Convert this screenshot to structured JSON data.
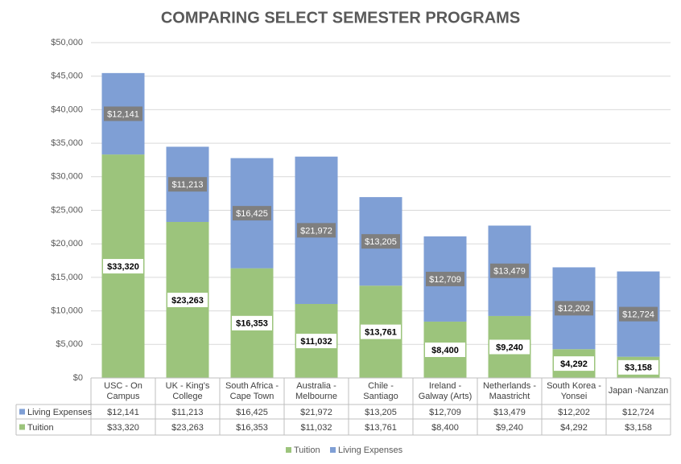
{
  "chart_data": {
    "type": "stacked_bar",
    "title": "COMPARING SELECT SEMESTER PROGRAMS",
    "categories": [
      "USC - On Campus",
      "UK - King's College",
      "South Africa - Cape Town",
      "Australia - Melbourne",
      "Chile - Santiago",
      "Ireland - Galway (Arts)",
      "Netherlands - Maastricht",
      "South Korea - Yonsei",
      "Japan -Nanzan"
    ],
    "series": [
      {
        "name": "Tuition",
        "color": "#9cc47c",
        "values": [
          33320,
          23263,
          16353,
          11032,
          13761,
          8400,
          9240,
          4292,
          3158
        ],
        "value_labels": [
          "$33,320",
          "$23,263",
          "$16,353",
          "$11,032",
          "$13,761",
          "$8,400",
          "$9,240",
          "$4,292",
          "$3,158"
        ]
      },
      {
        "name": "Living Expenses",
        "color": "#7f9fd5",
        "values": [
          12141,
          11213,
          16425,
          21972,
          13205,
          12709,
          13479,
          12202,
          12724
        ],
        "value_labels": [
          "$12,141",
          "$11,213",
          "$16,425",
          "$21,972",
          "$13,205",
          "$12,709",
          "$13,479",
          "$12,202",
          "$12,724"
        ]
      }
    ],
    "ylim": [
      0,
      50000
    ],
    "yticks": [
      {
        "value": 0,
        "label": "$0"
      },
      {
        "value": 5000,
        "label": "$5,000"
      },
      {
        "value": 10000,
        "label": "$10,000"
      },
      {
        "value": 15000,
        "label": "$15,000"
      },
      {
        "value": 20000,
        "label": "$20,000"
      },
      {
        "value": 25000,
        "label": "$25,000"
      },
      {
        "value": 30000,
        "label": "$30,000"
      },
      {
        "value": 35000,
        "label": "$35,000"
      },
      {
        "value": 40000,
        "label": "$40,000"
      },
      {
        "value": 45000,
        "label": "$45,000"
      },
      {
        "value": 50000,
        "label": "$50,000"
      }
    ],
    "grid": true,
    "legend": "bottom",
    "data_table": true
  }
}
